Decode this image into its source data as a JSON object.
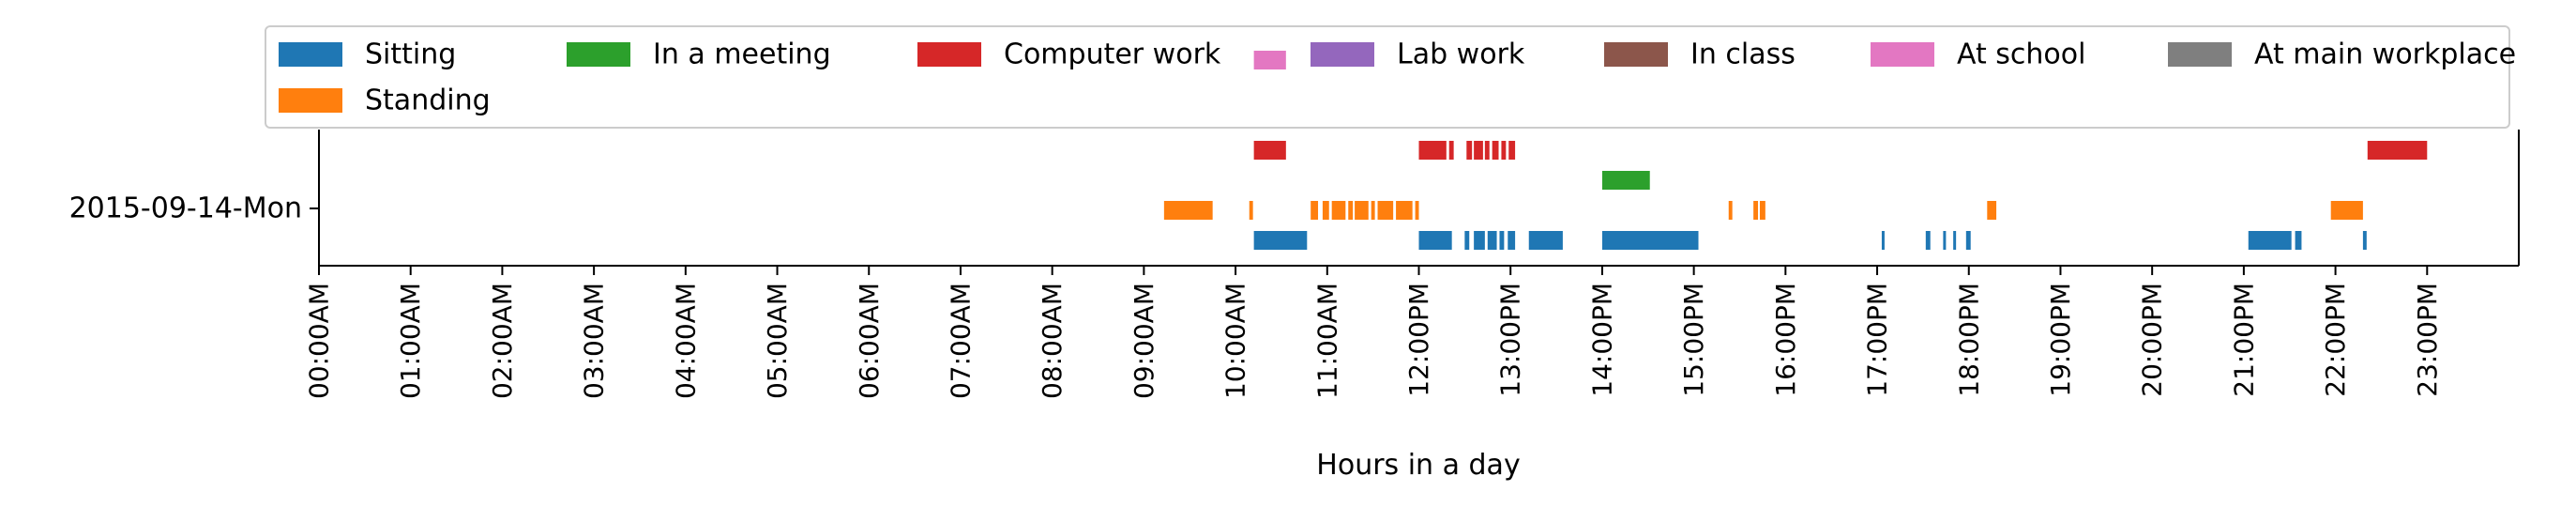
{
  "chart_data": {
    "type": "timeline",
    "xlabel": "Hours in a day",
    "xlim": [
      0,
      24
    ],
    "x_unit": "hour",
    "x_ticks": [
      "00:00AM",
      "01:00AM",
      "02:00AM",
      "03:00AM",
      "04:00AM",
      "05:00AM",
      "06:00AM",
      "07:00AM",
      "08:00AM",
      "09:00AM",
      "10:00AM",
      "11:00AM",
      "12:00PM",
      "13:00PM",
      "14:00PM",
      "15:00PM",
      "16:00PM",
      "17:00PM",
      "18:00PM",
      "19:00PM",
      "20:00PM",
      "21:00PM",
      "22:00PM",
      "23:00PM"
    ],
    "y_categories": [
      "2015-09-14-Mon"
    ],
    "legend_position": "top",
    "series": [
      {
        "name": "Sitting",
        "color": "#1f77b4",
        "lane": 0,
        "intervals": [
          [
            10.2,
            10.78
          ],
          [
            12.0,
            12.36
          ],
          [
            12.5,
            12.55
          ],
          [
            12.6,
            12.72
          ],
          [
            12.75,
            12.85
          ],
          [
            12.88,
            12.93
          ],
          [
            12.97,
            13.05
          ],
          [
            13.2,
            13.57
          ],
          [
            14.0,
            15.05
          ],
          [
            17.05,
            17.08
          ],
          [
            17.53,
            17.58
          ],
          [
            17.72,
            17.75
          ],
          [
            17.83,
            17.86
          ],
          [
            17.97,
            18.02
          ],
          [
            21.05,
            21.52
          ],
          [
            21.56,
            21.63
          ],
          [
            22.3,
            22.34
          ]
        ]
      },
      {
        "name": "Standing",
        "color": "#ff7f0e",
        "lane": 1,
        "intervals": [
          [
            9.22,
            9.75
          ],
          [
            10.15,
            10.19
          ],
          [
            10.82,
            10.9
          ],
          [
            10.95,
            11.02
          ],
          [
            11.05,
            11.2
          ],
          [
            11.23,
            11.28
          ],
          [
            11.3,
            11.45
          ],
          [
            11.48,
            11.52
          ],
          [
            11.55,
            11.72
          ],
          [
            11.75,
            11.93
          ],
          [
            11.96,
            12.0
          ],
          [
            15.38,
            15.42
          ],
          [
            15.65,
            15.7
          ],
          [
            15.72,
            15.78
          ],
          [
            18.2,
            18.3
          ],
          [
            21.95,
            22.3
          ]
        ]
      },
      {
        "name": "In a meeting",
        "color": "#2ca02c",
        "lane": 2,
        "intervals": [
          [
            14.0,
            14.52
          ]
        ]
      },
      {
        "name": "Computer work",
        "color": "#d62728",
        "lane": 3,
        "intervals": [
          [
            10.2,
            10.55
          ],
          [
            12.0,
            12.3
          ],
          [
            12.33,
            12.38
          ],
          [
            12.52,
            12.58
          ],
          [
            12.6,
            12.7
          ],
          [
            12.72,
            12.77
          ],
          [
            12.8,
            12.87
          ],
          [
            12.9,
            12.95
          ],
          [
            12.98,
            13.05
          ],
          [
            22.35,
            23.0
          ]
        ]
      },
      {
        "name": "Lab work",
        "color": "#9467bd",
        "lane": 4,
        "intervals": []
      },
      {
        "name": "In class",
        "color": "#8c564b",
        "lane": 5,
        "intervals": []
      },
      {
        "name": "At school",
        "color": "#e377c2",
        "lane": 6,
        "intervals": [
          [
            10.2,
            10.55
          ]
        ]
      },
      {
        "name": "At main workplace",
        "color": "#7f7f7f",
        "lane": 7,
        "intervals": []
      }
    ]
  }
}
